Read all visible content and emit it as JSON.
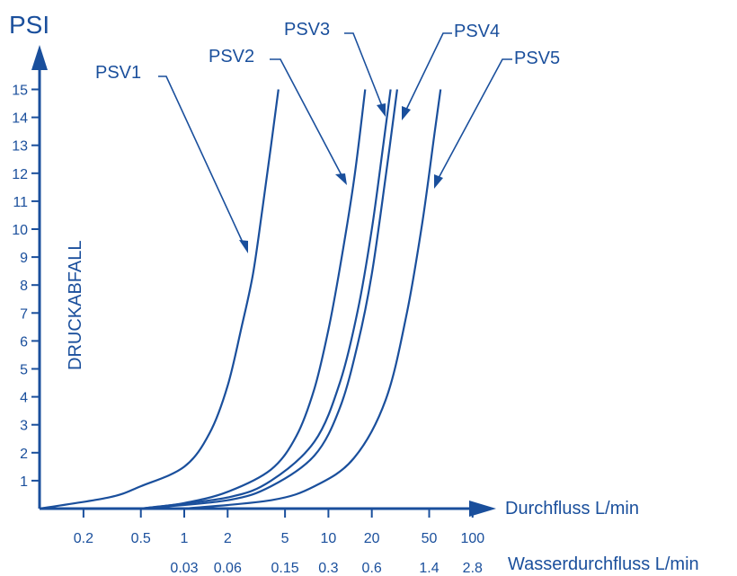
{
  "chart_data": {
    "type": "line",
    "title": "",
    "ylabel": "PSI",
    "ylabel_secondary": "DRUCKABFALL",
    "xlabel": "Durchfluss L/min",
    "xlabel_secondary": "Wasserdurchfluss L/min",
    "x_scale": "log",
    "ylim": [
      0,
      15
    ],
    "y_ticks": [
      "1",
      "2",
      "3",
      "4",
      "5",
      "6",
      "7",
      "8",
      "9",
      "10",
      "11",
      "12",
      "13",
      "14",
      "15"
    ],
    "x_ticks": [
      "0.2",
      "0.5",
      "1",
      "2",
      "5",
      "10",
      "20",
      "50",
      "100"
    ],
    "x_ticks_secondary": [
      "0.03",
      "0.06",
      "0.15",
      "0.3",
      "0.6",
      "1.4",
      "2.8"
    ],
    "line_color": "#1a4f9c",
    "series": [
      {
        "name": "PSV1",
        "x": [
          0.07,
          0.3,
          0.5,
          1.0,
          1.5,
          2.0,
          2.5,
          3.0,
          3.5,
          4.0,
          4.5
        ],
        "y": [
          0,
          0.4,
          0.8,
          1.5,
          2.7,
          4.4,
          6.5,
          8.4,
          10.8,
          13.0,
          15.0
        ]
      },
      {
        "name": "PSV2",
        "x": [
          0.5,
          1.0,
          2.0,
          4.0,
          6.0,
          8.0,
          10.0,
          12.0,
          15.0,
          18.0
        ],
        "y": [
          0,
          0.2,
          0.6,
          1.4,
          2.6,
          4.3,
          6.4,
          8.6,
          11.7,
          15.0
        ]
      },
      {
        "name": "PSV3",
        "x": [
          0.5,
          2.0,
          4.0,
          8.0,
          12.0,
          16.0,
          20.0,
          24.0,
          27.0
        ],
        "y": [
          0,
          0.4,
          1.0,
          2.4,
          4.5,
          7.1,
          10.0,
          13.0,
          15.0
        ]
      },
      {
        "name": "PSV4",
        "x": [
          0.5,
          2.0,
          4.0,
          8.0,
          12.0,
          16.0,
          20.0,
          25.0,
          30.0
        ],
        "y": [
          0,
          0.3,
          0.8,
          1.9,
          3.6,
          5.9,
          8.4,
          11.9,
          15.0
        ]
      },
      {
        "name": "PSV5",
        "x": [
          1.0,
          4.0,
          8.0,
          15.0,
          25.0,
          35.0,
          45.0,
          55.0,
          60.0
        ],
        "y": [
          0,
          0.3,
          0.8,
          1.8,
          3.9,
          7.0,
          10.3,
          13.6,
          15.0
        ]
      }
    ]
  }
}
